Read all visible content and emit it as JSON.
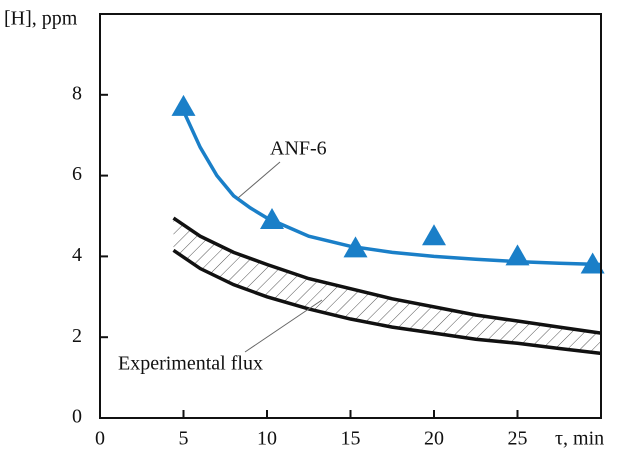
{
  "chart_data": {
    "type": "line",
    "x_label": "τ, min",
    "y_label": "[H], ppm",
    "xlim": [
      0,
      30
    ],
    "ylim": [
      0,
      10
    ],
    "xticks": [
      0,
      5,
      10,
      15,
      20,
      25
    ],
    "yticks": [
      0,
      2,
      4,
      6,
      8
    ],
    "series": [
      {
        "name": "ANF-6",
        "color": "#1a7fc8",
        "x": [
          5,
          6,
          7,
          8,
          9,
          10,
          12.5,
          15,
          17.5,
          20,
          22.5,
          25,
          27.5,
          30
        ],
        "values": [
          7.6,
          6.7,
          6.0,
          5.5,
          5.2,
          4.95,
          4.5,
          4.25,
          4.1,
          4.0,
          3.93,
          3.87,
          3.83,
          3.8
        ],
        "points": {
          "x": [
            5,
            10.3,
            15.3,
            20,
            25,
            29.5
          ],
          "values": [
            7.7,
            4.9,
            4.2,
            4.5,
            4.0,
            3.8
          ]
        }
      },
      {
        "name": "Experimental flux",
        "color": "#111111",
        "x": [
          4.4,
          6,
          8,
          10,
          12.5,
          15,
          17.5,
          20,
          22.5,
          25,
          27.5,
          30
        ],
        "values": [
          4.95,
          4.5,
          4.1,
          3.8,
          3.45,
          3.2,
          2.95,
          2.75,
          2.55,
          2.4,
          2.25,
          2.1
        ],
        "lower": [
          4.15,
          3.7,
          3.3,
          3.0,
          2.7,
          2.45,
          2.25,
          2.1,
          1.95,
          1.85,
          1.72,
          1.6
        ]
      }
    ]
  }
}
